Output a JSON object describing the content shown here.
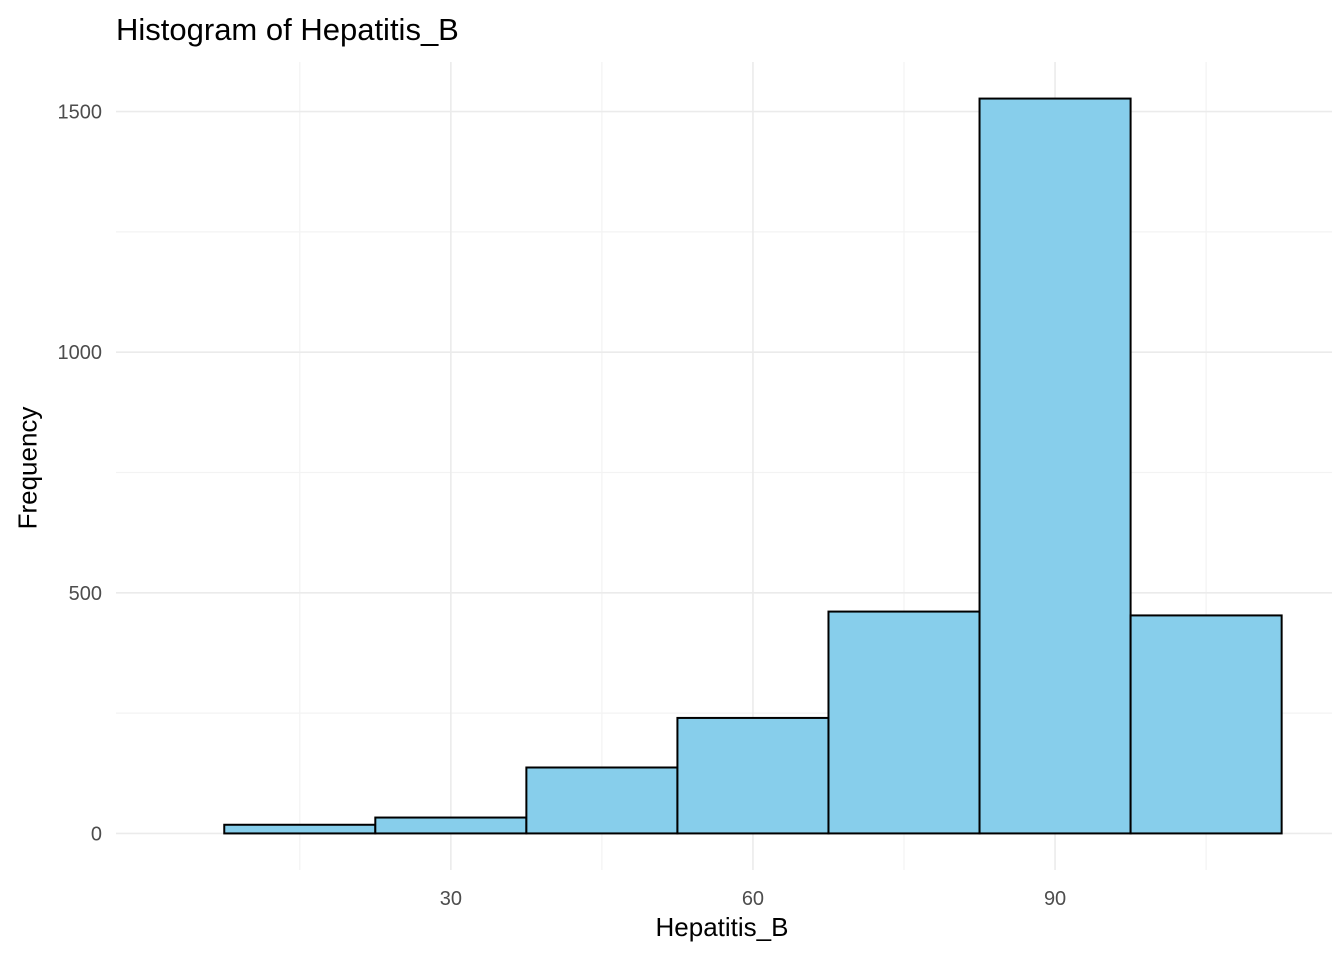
{
  "chart_data": {
    "type": "histogram",
    "title": "Histogram of Hepatitis_B",
    "xlabel": "Hepatitis_B",
    "ylabel": "Frequency",
    "bins": [
      {
        "x0": 7.5,
        "x1": 22.5,
        "count": 18
      },
      {
        "x0": 22.5,
        "x1": 37.5,
        "count": 33
      },
      {
        "x0": 37.5,
        "x1": 52.5,
        "count": 137
      },
      {
        "x0": 52.5,
        "x1": 67.5,
        "count": 240
      },
      {
        "x0": 67.5,
        "x1": 82.5,
        "count": 461
      },
      {
        "x0": 82.5,
        "x1": 97.5,
        "count": 1527
      },
      {
        "x0": 97.5,
        "x1": 112.5,
        "count": 453
      }
    ],
    "x_ticks": [
      30,
      60,
      90
    ],
    "y_ticks": [
      0,
      500,
      1000,
      1500
    ],
    "xlim": [
      -3.25,
      117.5
    ],
    "ylim": [
      -76,
      1603
    ],
    "grid": true,
    "colors": {
      "bar_fill": "#87CEEB",
      "bar_stroke": "#000000",
      "grid_major": "#EBEBEB",
      "grid_minor": "#F3F3F3",
      "tick_text": "#4D4D4D"
    }
  }
}
